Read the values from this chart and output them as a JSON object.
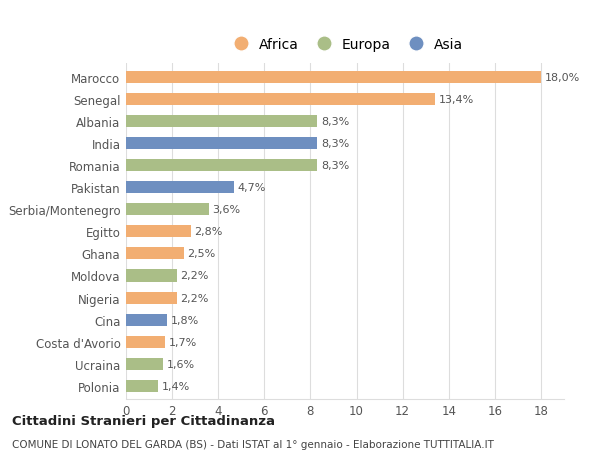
{
  "categories": [
    "Marocco",
    "Senegal",
    "Albania",
    "India",
    "Romania",
    "Pakistan",
    "Serbia/Montenegro",
    "Egitto",
    "Ghana",
    "Moldova",
    "Nigeria",
    "Cina",
    "Costa d'Avorio",
    "Ucraina",
    "Polonia"
  ],
  "values": [
    18.0,
    13.4,
    8.3,
    8.3,
    8.3,
    4.7,
    3.6,
    2.8,
    2.5,
    2.2,
    2.2,
    1.8,
    1.7,
    1.6,
    1.4
  ],
  "labels": [
    "18,0%",
    "13,4%",
    "8,3%",
    "8,3%",
    "8,3%",
    "4,7%",
    "3,6%",
    "2,8%",
    "2,5%",
    "2,2%",
    "2,2%",
    "1,8%",
    "1,7%",
    "1,6%",
    "1,4%"
  ],
  "continent": [
    "Africa",
    "Africa",
    "Europa",
    "Asia",
    "Europa",
    "Asia",
    "Europa",
    "Africa",
    "Africa",
    "Europa",
    "Africa",
    "Asia",
    "Africa",
    "Europa",
    "Europa"
  ],
  "colors": {
    "Africa": "#F2AE72",
    "Europa": "#AABE87",
    "Asia": "#6E8FC0"
  },
  "legend": [
    "Africa",
    "Europa",
    "Asia"
  ],
  "legend_colors": [
    "#F2AE72",
    "#AABE87",
    "#6E8FC0"
  ],
  "title1": "Cittadini Stranieri per Cittadinanza",
  "title2": "COMUNE DI LONATO DEL GARDA (BS) - Dati ISTAT al 1° gennaio - Elaborazione TUTTITALIA.IT",
  "xlim": [
    0,
    19
  ],
  "xticks": [
    0,
    2,
    4,
    6,
    8,
    10,
    12,
    14,
    16,
    18
  ],
  "background_color": "#FFFFFF",
  "grid_color": "#DDDDDD"
}
